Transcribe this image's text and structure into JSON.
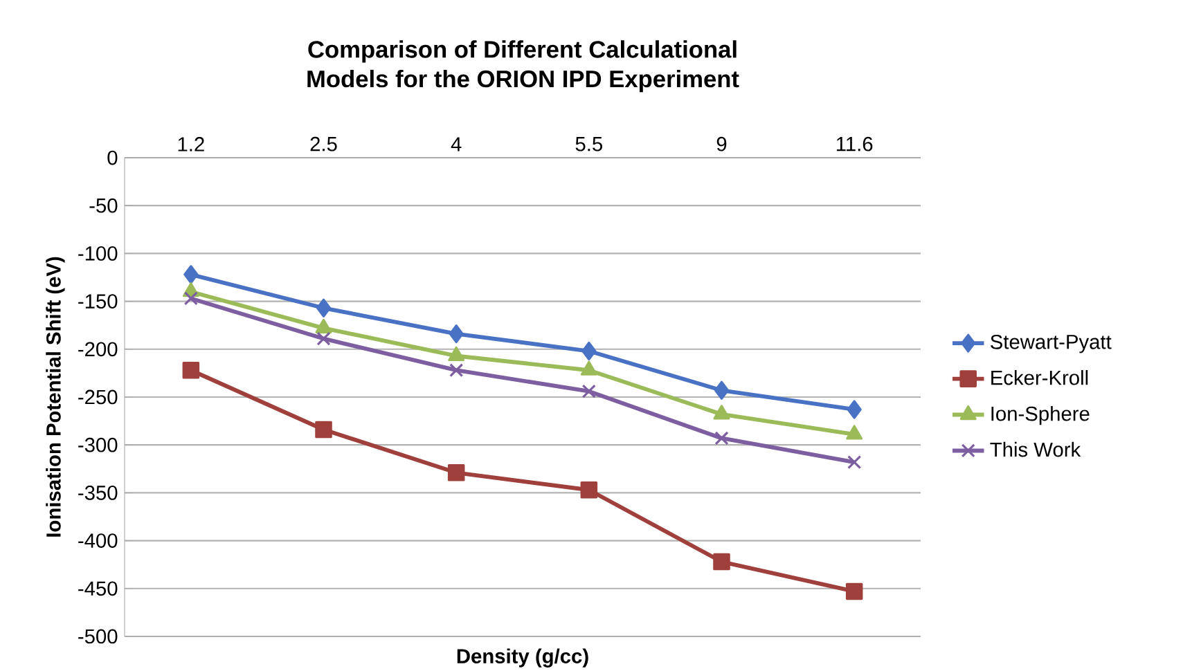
{
  "chart_data": {
    "type": "line",
    "title": "Comparison of Different Calculational\nModels for the ORION IPD Experiment",
    "xlabel": "Density (g/cc)",
    "ylabel": "Ionisation Potential Shift (eV)",
    "categories": [
      "1.2",
      "2.5",
      "4",
      "5.5",
      "9",
      "11.6"
    ],
    "series": [
      {
        "name": "Stewart-Pyatt",
        "color": "#4a72c4",
        "marker": "diamond",
        "values": [
          -122,
          -157,
          -184,
          -202,
          -243,
          -263
        ]
      },
      {
        "name": "Ecker-Kroll",
        "color": "#a0403d",
        "marker": "square",
        "values": [
          -222,
          -284,
          -329,
          -347,
          -422,
          -453
        ]
      },
      {
        "name": "Ion-Sphere",
        "color": "#9bbb59",
        "marker": "triangle",
        "values": [
          -140,
          -178,
          -207,
          -222,
          -268,
          -289
        ]
      },
      {
        "name": "This Work",
        "color": "#7d5ea0",
        "marker": "cross",
        "values": [
          -147,
          -189,
          -222,
          -244,
          -293,
          -318
        ]
      }
    ],
    "ylim": [
      -500,
      0
    ],
    "yticks": [
      0,
      -50,
      -100,
      -150,
      -200,
      -250,
      -300,
      -350,
      -400,
      -450,
      -500
    ],
    "grid": "y",
    "legend": "right"
  }
}
